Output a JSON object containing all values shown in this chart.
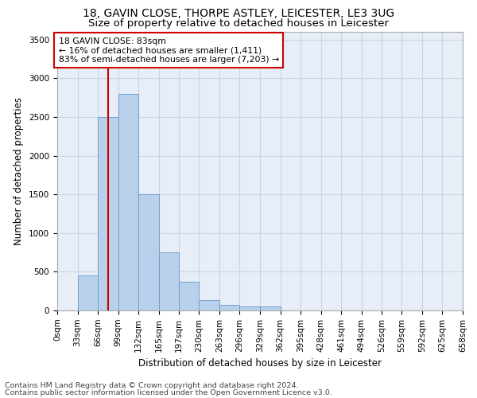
{
  "title_line1": "18, GAVIN CLOSE, THORPE ASTLEY, LEICESTER, LE3 3UG",
  "title_line2": "Size of property relative to detached houses in Leicester",
  "xlabel": "Distribution of detached houses by size in Leicester",
  "ylabel": "Number of detached properties",
  "bin_edges": [
    0,
    33,
    66,
    99,
    132,
    165,
    197,
    230,
    263,
    296,
    329,
    362,
    395,
    428,
    461,
    494,
    526,
    559,
    592,
    625,
    658
  ],
  "bin_labels": [
    "0sqm",
    "33sqm",
    "66sqm",
    "99sqm",
    "132sqm",
    "165sqm",
    "197sqm",
    "230sqm",
    "263sqm",
    "296sqm",
    "329sqm",
    "362sqm",
    "395sqm",
    "428sqm",
    "461sqm",
    "494sqm",
    "526sqm",
    "559sqm",
    "592sqm",
    "625sqm",
    "658sqm"
  ],
  "bar_heights": [
    5,
    450,
    2500,
    2800,
    1500,
    750,
    375,
    130,
    75,
    55,
    50,
    5,
    5,
    0,
    0,
    0,
    0,
    0,
    0,
    0
  ],
  "bar_color": "#b8d0ea",
  "bar_edgecolor": "#6699cc",
  "grid_color": "#c8d4e4",
  "background_color": "#e8eef8",
  "vline_x": 83,
  "vline_color": "#cc0000",
  "annotation_text": "18 GAVIN CLOSE: 83sqm\n← 16% of detached houses are smaller (1,411)\n83% of semi-detached houses are larger (7,203) →",
  "annotation_box_color": "#ffffff",
  "annotation_box_edgecolor": "#cc0000",
  "ylim": [
    0,
    3600
  ],
  "yticks": [
    0,
    500,
    1000,
    1500,
    2000,
    2500,
    3000,
    3500
  ],
  "footnote1": "Contains HM Land Registry data © Crown copyright and database right 2024.",
  "footnote2": "Contains public sector information licensed under the Open Government Licence v3.0.",
  "title_fontsize": 10,
  "subtitle_fontsize": 9.5,
  "axis_label_fontsize": 8.5,
  "tick_fontsize": 7.5,
  "annotation_fontsize": 7.8,
  "footnote_fontsize": 6.8
}
